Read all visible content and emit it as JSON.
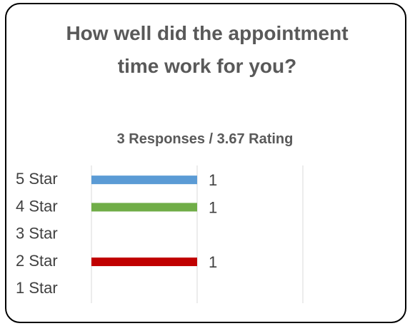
{
  "chart_data": {
    "type": "hbar",
    "title": "How well did the appointment time work for you?",
    "subtitle": "3 Responses / 3.67 Rating",
    "categories": [
      "5 Star",
      "4 Star",
      "3 Star",
      "2 Star",
      "1 Star"
    ],
    "values": [
      1,
      1,
      0,
      1,
      0
    ],
    "colors": [
      "#5b9bd5",
      "#70ad47",
      null,
      "#c00000",
      null
    ],
    "xlim": [
      0,
      2
    ],
    "xticks": [
      0,
      1,
      2
    ],
    "grid": true
  }
}
